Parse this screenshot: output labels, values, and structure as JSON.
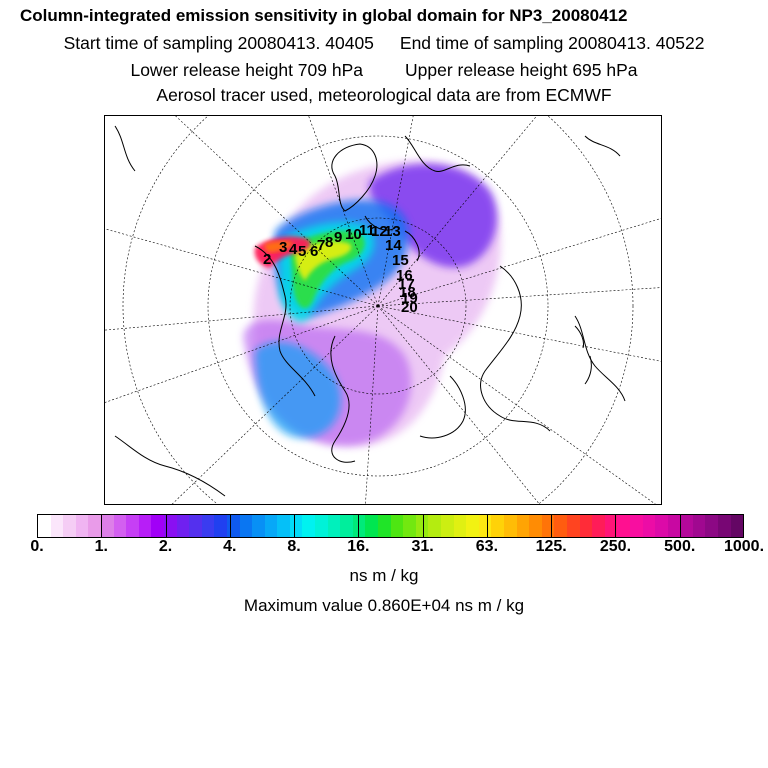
{
  "header": {
    "title": "Column-integrated emission sensitivity in global domain for NP3_20080412",
    "start_label": "Start time of sampling 20080413. 40405",
    "end_label": "End time of sampling 20080413. 40522",
    "lower_label": "Lower release height  709 hPa",
    "upper_label": "Upper release height  695 hPa",
    "tracer_label": "Aerosol tracer used, meteorological data are from ECMWF"
  },
  "map": {
    "trajectory_labels": [
      "2",
      "3",
      "4",
      "5",
      "6",
      "7",
      "8",
      "9",
      "10",
      "11",
      "12",
      "13",
      "14",
      "15",
      "16",
      "17",
      "18",
      "19",
      "20"
    ]
  },
  "colorbar": {
    "colors": [
      "#ffffff",
      "#fbe6fb",
      "#f5cdf5",
      "#f0b4f2",
      "#e99be9",
      "#dd7fe8",
      "#d35ff0",
      "#c63ff5",
      "#b71ef7",
      "#a100f7",
      "#8a10f2",
      "#7020f0",
      "#5430ee",
      "#3a3cf0",
      "#2040f0",
      "#0f5aef",
      "#0a76f2",
      "#0890f5",
      "#07a8f7",
      "#05c0f8",
      "#02dcf8",
      "#00f2f0",
      "#00f2d8",
      "#00f0bc",
      "#00ee9c",
      "#00ea7a",
      "#00e650",
      "#20e428",
      "#4ee612",
      "#72e810",
      "#96ea10",
      "#b4ec10",
      "#ccee12",
      "#e0f012",
      "#f2f212",
      "#fde812",
      "#ffd208",
      "#ffbc06",
      "#ffa404",
      "#ff8c04",
      "#ff7408",
      "#ff5c10",
      "#ff4420",
      "#ff2c38",
      "#ff1c58",
      "#ff1478",
      "#ff1090",
      "#f80ea0",
      "#ec0ca6",
      "#dc0aa8",
      "#c808a2",
      "#b4089a",
      "#a00890",
      "#8c0884",
      "#780674",
      "#640664"
    ],
    "tick_labels": [
      "0.",
      "1.",
      "2.",
      "4.",
      "8.",
      "16.",
      "31.",
      "63.",
      "125.",
      "250.",
      "500.",
      "1000."
    ],
    "unit": "ns m / kg"
  },
  "maximum": "Maximum value  0.860E+04 ns m / kg"
}
